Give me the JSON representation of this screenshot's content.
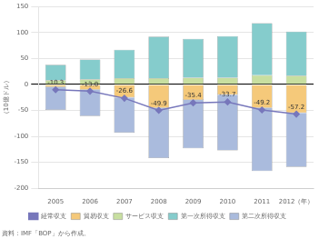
{
  "chart_data": {
    "type": "bar",
    "stacked": true,
    "categories": [
      "2005",
      "2006",
      "2007",
      "2008",
      "2009",
      "2010",
      "2011",
      "2012（年）"
    ],
    "series": [
      {
        "name": "貿易収支",
        "color": "#F5C97A",
        "values": [
          -5,
          -10,
          -25,
          -45,
          -30,
          -20,
          -45,
          -55
        ]
      },
      {
        "name": "サービス収支",
        "color": "#C8DFA0",
        "values": [
          8,
          10,
          12,
          12,
          13,
          13,
          18,
          17
        ]
      },
      {
        "name": "第一次所得収支",
        "color": "#85CCCC",
        "values": [
          30,
          38,
          55,
          80,
          75,
          80,
          100,
          85
        ]
      },
      {
        "name": "第二次所得収支",
        "color": "#AABBDD",
        "values": [
          -44,
          -51,
          -68,
          -97,
          -93,
          -107,
          -122,
          -104
        ]
      },
      {
        "name": "経常収支",
        "type": "line",
        "color": "#7777BB",
        "marker": "diamond",
        "values": [
          -10.3,
          -13.0,
          -26.6,
          -49.9,
          -35.4,
          -33.7,
          -49.2,
          -57.2
        ],
        "value_labels": [
          "-10.3",
          "-13.0",
          "-26.6",
          "-49.9",
          "-35.4",
          "-33.7",
          "-49.2",
          "-57.2"
        ],
        "data_labels": true
      }
    ],
    "ylabel": "（10億ドル）",
    "ylim": [
      -200,
      150
    ],
    "yticks": [
      -200,
      -150,
      -100,
      -50,
      0,
      50,
      100,
      150
    ],
    "grid": "y",
    "legend": "bottom",
    "source": "資料：IMF「BOP」から作成。"
  }
}
